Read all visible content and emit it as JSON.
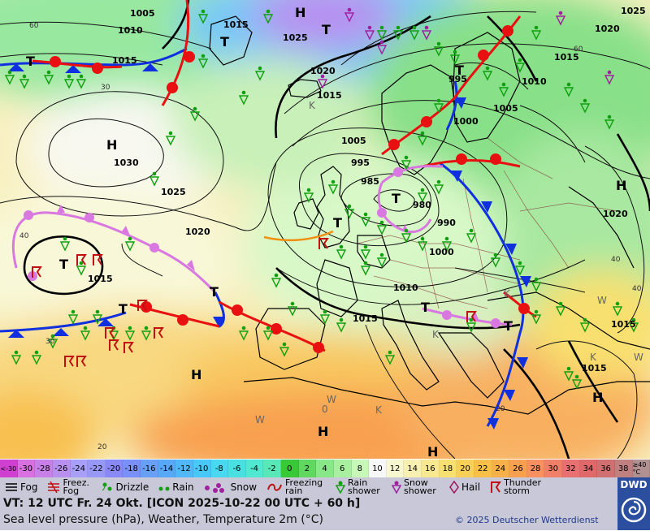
{
  "map": {
    "isobars": [
      {
        "value": "1005"
      },
      {
        "value": "1010"
      },
      {
        "value": "1015"
      },
      {
        "value": "1015"
      },
      {
        "value": "1025"
      },
      {
        "value": "1020"
      },
      {
        "value": "1015"
      },
      {
        "value": "1030"
      },
      {
        "value": "1025"
      },
      {
        "value": "1020"
      },
      {
        "value": "1015"
      },
      {
        "value": "1005"
      },
      {
        "value": "995"
      },
      {
        "value": "985"
      },
      {
        "value": "980"
      },
      {
        "value": "990"
      },
      {
        "value": "1000"
      },
      {
        "value": "1010"
      },
      {
        "value": "1015"
      },
      {
        "value": "1000"
      },
      {
        "value": "1005"
      },
      {
        "value": "995"
      },
      {
        "value": "1010"
      },
      {
        "value": "1015"
      },
      {
        "value": "1020"
      },
      {
        "value": "1025"
      },
      {
        "value": "1015"
      },
      {
        "value": "1015"
      }
    ],
    "pressure_centers": [
      {
        "label": "H"
      },
      {
        "label": "T"
      },
      {
        "label": "H"
      },
      {
        "label": "T"
      },
      {
        "label": "T"
      },
      {
        "label": "T"
      },
      {
        "label": "T"
      },
      {
        "label": "T"
      },
      {
        "label": "T"
      },
      {
        "label": "H"
      },
      {
        "label": "H"
      },
      {
        "label": "H"
      },
      {
        "label": "H"
      },
      {
        "label": "T"
      },
      {
        "label": "T"
      },
      {
        "label": "T"
      },
      {
        "label": "T"
      }
    ],
    "temperature_labels": [
      "60",
      "30",
      "40",
      "30",
      "20",
      "40",
      "40",
      "20",
      "60"
    ],
    "misc_letters": [
      "K",
      "K",
      "K",
      "K",
      "W",
      "W",
      "W",
      "W",
      "0",
      "K"
    ]
  },
  "temperature_scale": [
    {
      "label": "<-30",
      "color": "#d040d0"
    },
    {
      "label": "-30",
      "color": "#d870e0"
    },
    {
      "label": "-28",
      "color": "#c880e8"
    },
    {
      "label": "-26",
      "color": "#b890f0"
    },
    {
      "label": "-24",
      "color": "#a8a0f8"
    },
    {
      "label": "-22",
      "color": "#9898f8"
    },
    {
      "label": "-20",
      "color": "#8888f8"
    },
    {
      "label": "-18",
      "color": "#7890f8"
    },
    {
      "label": "-16",
      "color": "#68a0f8"
    },
    {
      "label": "-14",
      "color": "#58a8f8"
    },
    {
      "label": "-12",
      "color": "#50b8f8"
    },
    {
      "label": "-10",
      "color": "#48c8f8"
    },
    {
      "label": "-8",
      "color": "#48d8f0"
    },
    {
      "label": "-6",
      "color": "#48e0e0"
    },
    {
      "label": "-4",
      "color": "#50e8d0"
    },
    {
      "label": "-2",
      "color": "#58e8b8"
    },
    {
      "label": "0",
      "color": "#38c838"
    },
    {
      "label": "2",
      "color": "#60d860"
    },
    {
      "label": "4",
      "color": "#88e888"
    },
    {
      "label": "6",
      "color": "#a8f0a0"
    },
    {
      "label": "8",
      "color": "#c8f8b8"
    },
    {
      "label": "10",
      "color": "#f8f8f8"
    },
    {
      "label": "12",
      "color": "#f8f8d0"
    },
    {
      "label": "14",
      "color": "#f8f0b0"
    },
    {
      "label": "16",
      "color": "#f8e890"
    },
    {
      "label": "18",
      "color": "#f8e070"
    },
    {
      "label": "20",
      "color": "#f8d058"
    },
    {
      "label": "22",
      "color": "#f8c048"
    },
    {
      "label": "24",
      "color": "#f8b048"
    },
    {
      "label": "26",
      "color": "#f8a050"
    },
    {
      "label": "28",
      "color": "#f89060"
    },
    {
      "label": "30",
      "color": "#f08068"
    },
    {
      "label": "32",
      "color": "#e87070"
    },
    {
      "label": "34",
      "color": "#e06868"
    },
    {
      "label": "36",
      "color": "#d07070"
    },
    {
      "label": "38",
      "color": "#c08080"
    },
    {
      "label": "≥40 °C",
      "color": "#b09090"
    }
  ],
  "weather_legend": {
    "fog": "Fog",
    "freezing_fog": "Freez. Fog",
    "drizzle": "Drizzle",
    "rain": "Rain",
    "snow": "Snow",
    "freezing_rain": "Freezing rain",
    "rain_shower": "Rain shower",
    "snow_shower": "Snow shower",
    "hail": "Hail",
    "thunderstorm": "Thunder storm"
  },
  "info": {
    "valid_time": "VT: 12 UTC Fr.  24 Okt. [ICON 2025-10-22  00 UTC + 60 h]",
    "description": "Sea level pressure (hPa), Weather, Temperature 2m (°C)",
    "copyright": "© 2025 Deutscher Wetterdienst",
    "logo": "DWD"
  },
  "colors": {
    "warm_front": "#e81010",
    "cold_front": "#1030e0",
    "occlusion": "#d878e0",
    "legend_bg": "#c8c8d8",
    "logo_bg": "#2b4f9e"
  }
}
